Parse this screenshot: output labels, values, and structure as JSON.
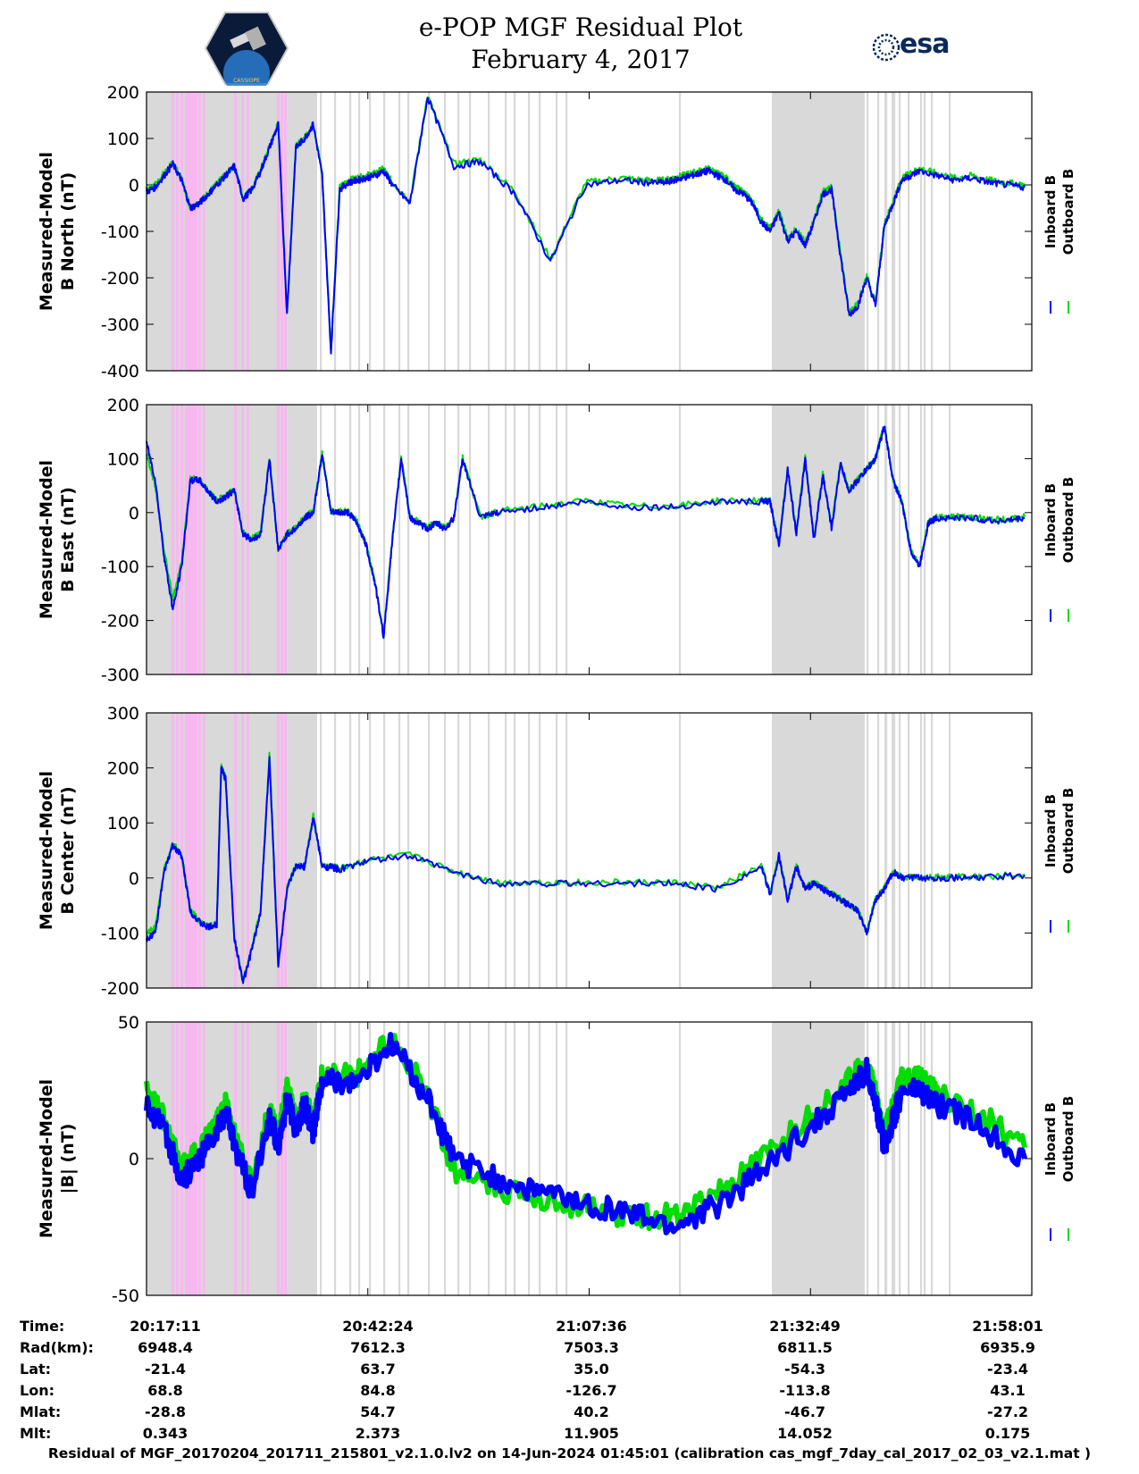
{
  "header": {
    "title_line1": "e-POP MGF Residual Plot",
    "title_line2": "February 4, 2017",
    "left_logo_text": "CASSIOPE",
    "right_logo_text": "esa"
  },
  "colors": {
    "inboard": "#0000ff",
    "outboard": "#00dd00",
    "shade_gray": "#d9d9d9",
    "shade_pink": "#f7b8f0"
  },
  "chart_data": [
    {
      "type": "line",
      "ylabel_line1": "Measured-Model",
      "ylabel_line2": "B North (nT)",
      "ylim": [
        -400,
        200
      ],
      "yticks": [
        200,
        100,
        0,
        -100,
        -200,
        -300,
        -400
      ],
      "legend": [
        "Inboard B",
        "Outboard B"
      ],
      "x_minutes": [
        0,
        1,
        2,
        3,
        4,
        5,
        6,
        7,
        8,
        9,
        10,
        11,
        12,
        13,
        14,
        15,
        16,
        17,
        18,
        19,
        20,
        21,
        22,
        23,
        24,
        25,
        26,
        27,
        28,
        30,
        32,
        35,
        38,
        42,
        46,
        50,
        54,
        57,
        59,
        60,
        61,
        62,
        63,
        64,
        65,
        66,
        67,
        68,
        69,
        70,
        71,
        72,
        73,
        74,
        75,
        76,
        77,
        78,
        79,
        80,
        81,
        82,
        83,
        84,
        85,
        86,
        87,
        88,
        90,
        92,
        94,
        96,
        98,
        100
      ],
      "series": [
        {
          "name": "Inboard B",
          "values": [
            -15,
            -5,
            20,
            45,
            10,
            -50,
            -40,
            -20,
            0,
            20,
            40,
            -30,
            -10,
            30,
            80,
            130,
            -280,
            80,
            100,
            130,
            20,
            -360,
            -10,
            5,
            10,
            15,
            20,
            30,
            0,
            -40,
            190,
            40,
            50,
            -20,
            -165,
            0,
            10,
            5,
            5,
            10,
            15,
            20,
            25,
            30,
            20,
            10,
            -10,
            -20,
            -40,
            -80,
            -100,
            -60,
            -120,
            -100,
            -130,
            -80,
            -20,
            -10,
            -150,
            -280,
            -260,
            -200,
            -260,
            -90,
            -40,
            10,
            20,
            30,
            20,
            10,
            15,
            5,
            0,
            -5
          ]
        },
        {
          "name": "Outboard B",
          "values": [
            -10,
            0,
            25,
            48,
            12,
            -48,
            -38,
            -18,
            2,
            22,
            42,
            -28,
            -8,
            32,
            82,
            132,
            -276,
            82,
            102,
            132,
            24,
            -356,
            -5,
            10,
            15,
            20,
            25,
            35,
            5,
            -35,
            192,
            45,
            55,
            -15,
            -160,
            5,
            15,
            10,
            10,
            15,
            20,
            25,
            30,
            35,
            25,
            15,
            -5,
            -15,
            -35,
            -75,
            -95,
            -55,
            -115,
            -95,
            -125,
            -75,
            -15,
            -5,
            -145,
            -275,
            -255,
            -195,
            -255,
            -85,
            -35,
            15,
            25,
            35,
            25,
            15,
            20,
            10,
            5,
            0
          ]
        }
      ]
    },
    {
      "type": "line",
      "ylabel_line1": "Measured-Model",
      "ylabel_line2": "B East (nT)",
      "ylim": [
        -300,
        200
      ],
      "yticks": [
        200,
        100,
        0,
        -100,
        -200,
        -300
      ],
      "legend": [
        "Inboard B",
        "Outboard B"
      ],
      "x_minutes": [
        0,
        1,
        2,
        3,
        4,
        5,
        6,
        7,
        8,
        9,
        10,
        11,
        12,
        13,
        14,
        15,
        16,
        17,
        18,
        19,
        20,
        21,
        22,
        23,
        24,
        25,
        26,
        27,
        28,
        29,
        30,
        31,
        32,
        33,
        34,
        35,
        36,
        38,
        40,
        45,
        50,
        55,
        60,
        65,
        70,
        71,
        72,
        73,
        74,
        75,
        76,
        77,
        78,
        79,
        80,
        81,
        82,
        83,
        84,
        85,
        86,
        87,
        88,
        89,
        90,
        92,
        94,
        96,
        98,
        100
      ],
      "series": [
        {
          "name": "Inboard B",
          "values": [
            130,
            60,
            -80,
            -180,
            -100,
            60,
            60,
            40,
            20,
            30,
            40,
            -40,
            -50,
            -40,
            100,
            -70,
            -40,
            -30,
            -10,
            0,
            110,
            0,
            0,
            0,
            -20,
            -60,
            -130,
            -230,
            -50,
            100,
            -10,
            -20,
            -30,
            -20,
            -30,
            -10,
            100,
            -10,
            0,
            10,
            20,
            10,
            10,
            20,
            20,
            20,
            -60,
            80,
            -40,
            100,
            -50,
            70,
            -30,
            90,
            40,
            60,
            80,
            100,
            160,
            60,
            20,
            -70,
            -100,
            -20,
            -10,
            -10,
            -10,
            -15,
            -15,
            -10
          ]
        },
        {
          "name": "Outboard B",
          "values": [
            110,
            50,
            -70,
            -160,
            -90,
            62,
            62,
            42,
            22,
            32,
            42,
            -38,
            -48,
            -38,
            102,
            -68,
            -38,
            -28,
            -8,
            2,
            112,
            2,
            2,
            2,
            -18,
            -58,
            -128,
            -228,
            -48,
            102,
            -8,
            -18,
            -28,
            -18,
            -28,
            -8,
            102,
            -8,
            2,
            12,
            22,
            12,
            12,
            22,
            22,
            22,
            -58,
            82,
            -38,
            102,
            -48,
            72,
            -28,
            92,
            42,
            62,
            82,
            102,
            162,
            62,
            22,
            -68,
            -98,
            -18,
            -8,
            -8,
            -8,
            -13,
            -13,
            -8
          ]
        }
      ]
    },
    {
      "type": "line",
      "ylabel_line1": "Measured-Model",
      "ylabel_line2": "B Center (nT)",
      "ylim": [
        -200,
        300
      ],
      "yticks": [
        300,
        200,
        100,
        0,
        -100,
        -200
      ],
      "legend": [
        "Inboard B",
        "Outboard B"
      ],
      "x_minutes": [
        0,
        1,
        2,
        3,
        4,
        5,
        6,
        7,
        8,
        8.5,
        9,
        10,
        11,
        12,
        13,
        14,
        15,
        16,
        17,
        18,
        19,
        20,
        21,
        22,
        25,
        30,
        35,
        40,
        45,
        50,
        55,
        60,
        65,
        70,
        71,
        72,
        73,
        74,
        75,
        76,
        77,
        78,
        79,
        80,
        81,
        82,
        83,
        84,
        85,
        86,
        88,
        90,
        92,
        95,
        100
      ],
      "series": [
        {
          "name": "Inboard B",
          "values": [
            -110,
            -100,
            10,
            60,
            40,
            -60,
            -80,
            -90,
            -85,
            200,
            180,
            -110,
            -190,
            -130,
            -60,
            220,
            -160,
            -20,
            20,
            20,
            110,
            20,
            20,
            15,
            30,
            40,
            10,
            -10,
            -10,
            -10,
            -10,
            -10,
            -20,
            20,
            -30,
            40,
            -40,
            20,
            -20,
            -10,
            -20,
            -30,
            -40,
            -50,
            -60,
            -100,
            -40,
            -20,
            10,
            0,
            0,
            0,
            0,
            0,
            5
          ]
        },
        {
          "name": "Outboard B",
          "values": [
            -100,
            -90,
            15,
            62,
            42,
            -58,
            -78,
            -88,
            -83,
            202,
            182,
            -108,
            -188,
            -128,
            -58,
            222,
            -158,
            -18,
            22,
            22,
            112,
            22,
            22,
            17,
            32,
            42,
            12,
            -8,
            -8,
            -8,
            -8,
            -8,
            -18,
            22,
            -28,
            42,
            -38,
            22,
            -18,
            -8,
            -18,
            -28,
            -38,
            -48,
            -58,
            -98,
            -38,
            -18,
            12,
            2,
            2,
            2,
            2,
            2,
            7
          ]
        }
      ]
    },
    {
      "type": "line",
      "ylabel_line1": "Measured-Model",
      "ylabel_line2": "|B| (nT)",
      "ylim": [
        -50,
        50
      ],
      "yticks": [
        50,
        0,
        -50
      ],
      "legend": [
        "Inboard B",
        "Outboard B"
      ],
      "x_minutes": [
        0,
        2,
        4,
        6,
        8,
        9,
        10,
        12,
        14,
        15,
        16,
        17,
        18,
        19,
        20,
        24,
        28,
        32,
        35,
        40,
        45,
        50,
        55,
        60,
        65,
        70,
        75,
        80,
        82,
        83,
        84,
        85,
        86,
        88,
        90,
        95,
        100
      ],
      "series": [
        {
          "name": "Inboard B",
          "values": [
            20,
            10,
            -8,
            0,
            10,
            18,
            5,
            -13,
            15,
            5,
            22,
            10,
            20,
            10,
            28,
            28,
            42,
            22,
            0,
            -8,
            -12,
            -17,
            -20,
            -25,
            -17,
            -5,
            10,
            25,
            32,
            20,
            5,
            14,
            25,
            25,
            20,
            12,
            0
          ]
        },
        {
          "name": "Outboard B",
          "values": [
            28,
            14,
            -4,
            3,
            13,
            21,
            8,
            -10,
            18,
            8,
            25,
            13,
            23,
            13,
            31,
            31,
            44,
            24,
            -4,
            -12,
            -14,
            -18,
            -21,
            -21,
            -13,
            -1,
            14,
            29,
            34,
            24,
            9,
            18,
            29,
            29,
            24,
            16,
            4
          ]
        }
      ]
    }
  ],
  "xaxis_minutes_ticks": [
    0,
    25.2,
    50.4,
    75.6,
    100.8
  ],
  "info_table": {
    "labels": [
      "Time:",
      "Rad(km):",
      "Lat:",
      "Lon:",
      "Mlat:",
      "Mlt:"
    ],
    "columns": [
      [
        "20:17:11",
        "6948.4",
        "-21.4",
        "68.8",
        "-28.8",
        "0.343"
      ],
      [
        "20:42:24",
        "7612.3",
        "63.7",
        "84.8",
        "54.7",
        "2.373"
      ],
      [
        "21:07:36",
        "7503.3",
        "35.0",
        "-126.7",
        "40.2",
        "11.905"
      ],
      [
        "21:32:49",
        "6811.5",
        "-54.3",
        "-113.8",
        "-46.7",
        "14.052"
      ],
      [
        "21:58:01",
        "6935.9",
        "-23.4",
        "43.1",
        "-27.2",
        "0.175"
      ]
    ]
  },
  "footer": "Residual of MGF_20170204_201711_215801_v2.1.0.lv2 on 14-Jun-2024 01:45:01 (calibration cas_mgf_7day_cal_2017_02_03_v2.1.mat )"
}
